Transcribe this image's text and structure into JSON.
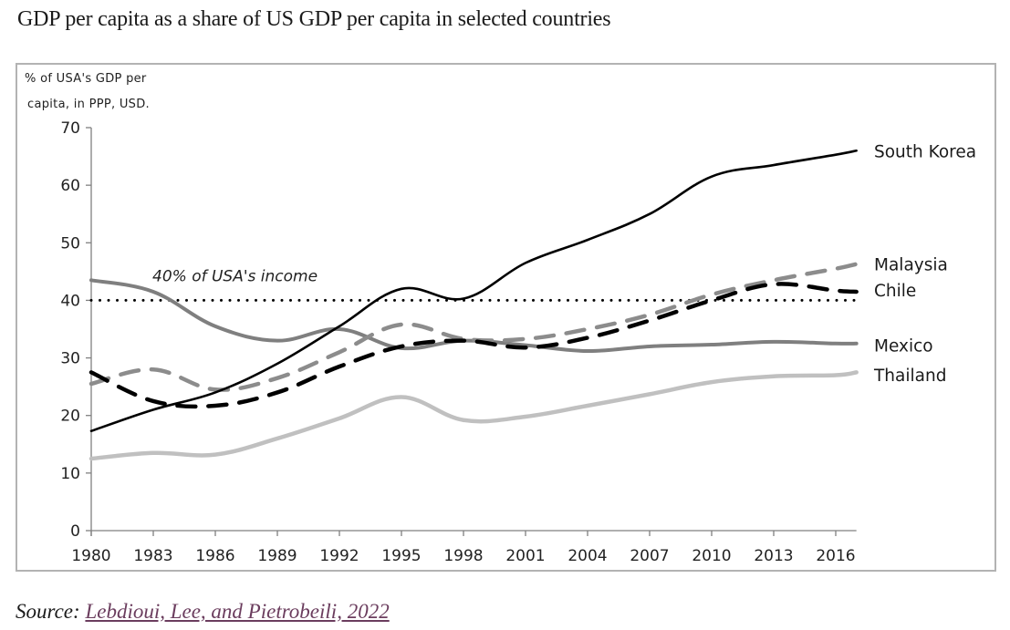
{
  "page": {
    "title": "GDP per capita as a share of US GDP per capita in selected countries",
    "source_prefix": "Source:",
    "source_link": "Lebdioui, Lee, and Pietrobeili, 2022"
  },
  "chart_data": {
    "type": "line",
    "title": "GDP per capita as a share of US GDP per capita in selected countries",
    "ylabel_lines": [
      "% of USA's GDP per",
      "capita, in PPP, USD."
    ],
    "xlabel": "",
    "xlim": [
      1980,
      2017
    ],
    "ylim": [
      0,
      70
    ],
    "x_ticks": [
      1980,
      1983,
      1986,
      1989,
      1992,
      1995,
      1998,
      2001,
      2004,
      2007,
      2010,
      2013,
      2016
    ],
    "y_ticks": [
      0,
      10,
      20,
      30,
      40,
      50,
      60,
      70
    ],
    "grid": false,
    "legend": "inline-right",
    "reference_line": {
      "y": 40,
      "label": "40% of USA's income",
      "style": "dotted",
      "color": "#000000"
    },
    "x": [
      1980,
      1983,
      1986,
      1989,
      1992,
      1995,
      1998,
      2001,
      2004,
      2007,
      2010,
      2013,
      2016,
      2017
    ],
    "series": [
      {
        "name": "South Korea",
        "color": "#000000",
        "style": "solid",
        "width": 2.6,
        "values": [
          17.3,
          21,
          24,
          29,
          35.5,
          42,
          40.3,
          46.5,
          50.5,
          55,
          61.5,
          63.5,
          65.3,
          66
        ]
      },
      {
        "name": "Malaysia",
        "color": "#8c8c8c",
        "style": "dashed",
        "width": 4.5,
        "values": [
          25.5,
          28,
          24.5,
          26.5,
          31,
          35.8,
          33.3,
          33.3,
          35,
          37.5,
          41,
          43.5,
          45.5,
          46.3
        ]
      },
      {
        "name": "Chile",
        "color": "#000000",
        "style": "dashed",
        "width": 4.5,
        "values": [
          27.5,
          22.5,
          21.7,
          24,
          28.5,
          32,
          33,
          31.8,
          33.5,
          36.5,
          40,
          42.8,
          41.7,
          41.5
        ]
      },
      {
        "name": "Mexico",
        "color": "#7f7f7f",
        "style": "solid",
        "width": 4,
        "values": [
          43.5,
          41.5,
          35.5,
          33,
          35,
          31.7,
          33,
          32.2,
          31.2,
          32,
          32.3,
          32.8,
          32.5,
          32.5
        ]
      },
      {
        "name": "Thailand",
        "color": "#c0c0c0",
        "style": "solid",
        "width": 4.5,
        "values": [
          12.5,
          13.5,
          13.2,
          16,
          19.5,
          23.2,
          19.2,
          19.8,
          21.7,
          23.7,
          25.8,
          26.8,
          27,
          27.5
        ]
      }
    ],
    "series_labels": [
      "South Korea",
      "Malaysia",
      "Chile",
      "Mexico",
      "Thailand"
    ]
  }
}
